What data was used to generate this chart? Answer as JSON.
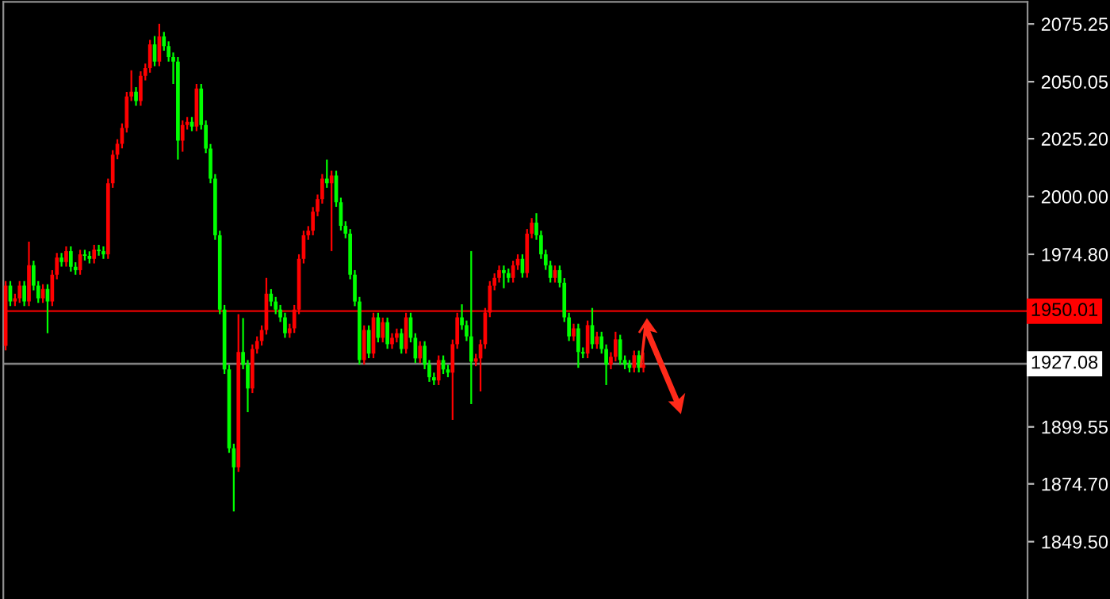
{
  "chart_data": {
    "type": "candlestick",
    "categories": [
      null,
      null,
      null,
      null,
      null,
      null,
      null,
      null,
      null,
      null,
      null,
      null,
      null,
      null,
      null,
      null,
      null,
      null,
      null,
      null,
      null,
      null,
      null,
      null,
      null,
      null,
      null,
      null,
      null,
      null,
      null,
      null,
      null,
      null,
      null,
      null,
      null,
      null,
      null,
      null,
      null,
      null,
      null,
      null,
      null,
      null,
      null,
      null,
      null,
      null,
      null,
      null,
      null,
      null,
      null,
      null,
      null,
      null,
      null,
      null,
      null,
      null,
      null,
      null,
      null,
      null,
      null,
      null,
      null,
      null,
      null,
      null,
      null,
      null,
      null,
      null,
      null,
      null,
      null,
      null,
      null,
      null,
      null,
      null,
      null,
      null,
      null,
      null,
      null,
      null,
      null,
      null,
      null,
      null,
      null,
      null,
      null,
      null,
      null,
      null,
      null,
      null,
      null,
      null,
      null,
      null,
      null,
      null,
      null,
      null,
      null,
      null,
      null,
      null,
      null,
      null,
      null,
      null,
      null,
      null,
      null,
      null,
      null,
      null,
      null,
      null,
      null,
      null,
      null,
      null,
      null,
      null,
      null,
      null,
      null,
      null,
      null,
      null,
      null,
      null,
      null,
      null,
      null,
      null,
      null,
      null,
      null,
      null,
      null,
      null,
      null,
      null,
      null,
      null,
      null,
      null,
      null,
      null,
      null,
      null,
      null,
      null,
      null,
      null,
      null,
      null,
      null,
      null,
      null,
      null,
      null,
      null,
      null,
      null,
      null,
      null,
      null,
      null,
      null,
      null,
      null,
      null,
      null,
      null,
      null,
      null,
      null,
      null,
      null,
      null,
      null,
      null,
      null,
      null,
      null,
      null,
      null,
      null,
      null,
      null,
      null,
      null,
      null,
      null,
      null,
      null,
      null,
      null,
      null,
      null,
      null,
      null,
      null,
      null,
      null,
      null,
      null,
      null,
      null,
      null
    ],
    "ohlc": [
      [
        1934.9,
        1963.1,
        1932.9,
        1961.1
      ],
      [
        1961.1,
        1963.1,
        1952.2,
        1954.2
      ],
      [
        1954.2,
        1957.6,
        1952.2,
        1955.6
      ],
      [
        1955.6,
        1963.1,
        1953.6,
        1961.1
      ],
      [
        1961.1,
        1963.1,
        1952.2,
        1954.2
      ],
      [
        1954.2,
        1980.3,
        1952.2,
        1970.0
      ],
      [
        1970.0,
        1972.0,
        1959.1,
        1961.1
      ],
      [
        1961.1,
        1963.1,
        1953.6,
        1955.6
      ],
      [
        1955.6,
        1961.7,
        1953.6,
        1959.7
      ],
      [
        1959.7,
        1961.7,
        1940.4,
        1954.2
      ],
      [
        1954.2,
        1967.9,
        1952.2,
        1965.9
      ],
      [
        1965.9,
        1975.4,
        1963.9,
        1973.4
      ],
      [
        1973.4,
        1975.4,
        1969.4,
        1971.4
      ],
      [
        1971.4,
        1978.2,
        1969.4,
        1976.2
      ],
      [
        1976.2,
        1978.2,
        1967.3,
        1969.3
      ],
      [
        1969.3,
        1971.3,
        1965.9,
        1967.9
      ],
      [
        1967.9,
        1976.8,
        1965.9,
        1974.8
      ],
      [
        1974.8,
        1976.8,
        1972.1,
        1974.1
      ],
      [
        1974.1,
        1976.1,
        1970.8,
        1972.8
      ],
      [
        1972.8,
        1978.9,
        1970.8,
        1976.9
      ],
      [
        1976.9,
        1978.9,
        1974.2,
        1976.2
      ],
      [
        1976.2,
        1978.2,
        1972.8,
        1974.8
      ],
      [
        1974.8,
        2007.8,
        1972.8,
        2005.8
      ],
      [
        2005.8,
        2020.2,
        2003.8,
        2018.2
      ],
      [
        2018.2,
        2025.0,
        2016.2,
        2023.0
      ],
      [
        2023.0,
        2031.9,
        2021.0,
        2029.9
      ],
      [
        2029.9,
        2045.6,
        2027.9,
        2043.6
      ],
      [
        2043.6,
        2055.0,
        2041.6,
        2045.7
      ],
      [
        2045.7,
        2047.7,
        2039.6,
        2041.6
      ],
      [
        2041.6,
        2054.6,
        2039.6,
        2052.6
      ],
      [
        2052.6,
        2058.0,
        2050.6,
        2056.0
      ],
      [
        2056.0,
        2068.3,
        2054.0,
        2066.3
      ],
      [
        2066.3,
        2070.0,
        2056.8,
        2058.8
      ],
      [
        2058.8,
        2075.3,
        2056.8,
        2069.8
      ],
      [
        2069.8,
        2071.8,
        2063.6,
        2065.6
      ],
      [
        2065.6,
        2067.6,
        2058.8,
        2060.8
      ],
      [
        2060.8,
        2062.8,
        2049.1,
        2058.8
      ],
      [
        2058.8,
        2060.8,
        2016.1,
        2024.4
      ],
      [
        2024.4,
        2033.2,
        2019.5,
        2031.2
      ],
      [
        2031.2,
        2034.6,
        2029.2,
        2032.6
      ],
      [
        2032.6,
        2034.6,
        2028.5,
        2030.5
      ],
      [
        2030.5,
        2049.1,
        2028.5,
        2047.1
      ],
      [
        2047.1,
        2049.1,
        2029.2,
        2031.2
      ],
      [
        2031.2,
        2033.2,
        2018.9,
        2020.9
      ],
      [
        2020.9,
        2022.9,
        2005.8,
        2007.8
      ],
      [
        2007.8,
        2009.8,
        1981.1,
        1983.1
      ],
      [
        1983.1,
        1985.1,
        1948.7,
        1950.7
      ],
      [
        1950.7,
        1952.7,
        1922.6,
        1924.6
      ],
      [
        1924.6,
        1926.6,
        1888.2,
        1890.2
      ],
      [
        1890.2,
        1892.2,
        1862.7,
        1881.9
      ],
      [
        1881.9,
        1948.7,
        1879.9,
        1932.2
      ],
      [
        1932.2,
        1947.0,
        1924.7,
        1926.7
      ],
      [
        1926.7,
        1928.7,
        1906.0,
        1916.3
      ],
      [
        1916.3,
        1935.5,
        1914.3,
        1933.5
      ],
      [
        1933.5,
        1939.0,
        1931.5,
        1937.0
      ],
      [
        1937.0,
        1943.8,
        1935.0,
        1941.8
      ],
      [
        1941.8,
        1964.5,
        1939.8,
        1957.6
      ],
      [
        1957.6,
        1959.6,
        1952.2,
        1954.2
      ],
      [
        1954.2,
        1956.2,
        1948.7,
        1950.7
      ],
      [
        1950.7,
        1952.7,
        1945.3,
        1947.3
      ],
      [
        1947.3,
        1949.3,
        1938.4,
        1940.4
      ],
      [
        1940.4,
        1944.5,
        1938.4,
        1942.5
      ],
      [
        1942.5,
        1952.7,
        1940.5,
        1950.7
      ],
      [
        1950.7,
        1974.8,
        1948.7,
        1972.8
      ],
      [
        1972.8,
        1985.1,
        1970.8,
        1983.1
      ],
      [
        1983.1,
        1987.1,
        1981.1,
        1985.1
      ],
      [
        1985.1,
        1995.4,
        1983.1,
        1993.4
      ],
      [
        1993.4,
        2000.9,
        1991.4,
        1998.9
      ],
      [
        1998.9,
        2009.8,
        1996.9,
        2007.8
      ],
      [
        2007.8,
        2016.1,
        2003.8,
        2005.8
      ],
      [
        2005.8,
        2011.2,
        1976.2,
        2009.2
      ],
      [
        2009.2,
        2011.2,
        1995.5,
        1997.5
      ],
      [
        1997.5,
        1999.5,
        1985.2,
        1987.2
      ],
      [
        1987.2,
        1989.2,
        1981.8,
        1983.8
      ],
      [
        1983.8,
        1985.8,
        1963.9,
        1965.9
      ],
      [
        1965.9,
        1967.9,
        1952.2,
        1954.2
      ],
      [
        1954.2,
        1956.2,
        1926.7,
        1928.7
      ],
      [
        1928.7,
        1943.8,
        1926.7,
        1941.8
      ],
      [
        1941.8,
        1943.8,
        1929.5,
        1931.5
      ],
      [
        1931.5,
        1949.3,
        1929.5,
        1947.3
      ],
      [
        1947.3,
        1949.3,
        1936.4,
        1938.4
      ],
      [
        1938.4,
        1947.2,
        1936.4,
        1945.2
      ],
      [
        1945.2,
        1947.2,
        1933.6,
        1935.6
      ],
      [
        1935.6,
        1940.4,
        1933.6,
        1938.4
      ],
      [
        1938.4,
        1942.4,
        1936.4,
        1940.4
      ],
      [
        1940.4,
        1942.4,
        1931.5,
        1933.5
      ],
      [
        1933.5,
        1949.3,
        1931.5,
        1947.3
      ],
      [
        1947.3,
        1949.3,
        1936.4,
        1938.4
      ],
      [
        1938.4,
        1940.4,
        1927.4,
        1929.4
      ],
      [
        1929.4,
        1936.9,
        1927.4,
        1934.9
      ],
      [
        1934.9,
        1936.9,
        1924.7,
        1926.7
      ],
      [
        1926.7,
        1928.7,
        1919.2,
        1921.2
      ],
      [
        1921.2,
        1923.2,
        1917.8,
        1919.8
      ],
      [
        1919.8,
        1930.7,
        1917.8,
        1928.7
      ],
      [
        1928.7,
        1930.7,
        1922.6,
        1924.6
      ],
      [
        1924.6,
        1926.6,
        1921.2,
        1923.2
      ],
      [
        1923.2,
        1937.6,
        1902.6,
        1935.6
      ],
      [
        1935.6,
        1949.3,
        1933.6,
        1947.3
      ],
      [
        1947.3,
        1953.0,
        1941.9,
        1943.9
      ],
      [
        1943.9,
        1945.9,
        1937.0,
        1939.0
      ],
      [
        1939.0,
        1976.2,
        1909.5,
        1928.0
      ],
      [
        1928.0,
        1931.4,
        1926.0,
        1929.4
      ],
      [
        1929.4,
        1937.6,
        1915.0,
        1935.6
      ],
      [
        1935.6,
        1951.4,
        1933.6,
        1949.4
      ],
      [
        1949.4,
        1963.1,
        1947.4,
        1961.1
      ],
      [
        1961.1,
        1966.5,
        1959.1,
        1964.5
      ],
      [
        1964.5,
        1969.9,
        1962.5,
        1967.9
      ],
      [
        1967.9,
        1969.9,
        1960.0,
        1966.6
      ],
      [
        1966.6,
        1968.6,
        1962.5,
        1964.5
      ],
      [
        1964.5,
        1972.0,
        1962.5,
        1970.0
      ],
      [
        1970.0,
        1974.8,
        1968.0,
        1972.8
      ],
      [
        1972.8,
        1974.8,
        1964.6,
        1966.6
      ],
      [
        1966.6,
        1985.8,
        1964.6,
        1983.8
      ],
      [
        1983.8,
        1990.6,
        1981.8,
        1988.6
      ],
      [
        1988.6,
        1992.7,
        1981.1,
        1983.1
      ],
      [
        1983.1,
        1985.1,
        1972.8,
        1974.8
      ],
      [
        1974.8,
        1976.8,
        1968.0,
        1970.0
      ],
      [
        1970.0,
        1972.0,
        1962.5,
        1964.5
      ],
      [
        1964.5,
        1969.9,
        1962.5,
        1967.9
      ],
      [
        1967.9,
        1969.9,
        1960.4,
        1962.4
      ],
      [
        1962.4,
        1964.4,
        1945.3,
        1947.3
      ],
      [
        1947.3,
        1949.3,
        1937.0,
        1939.0
      ],
      [
        1939.0,
        1944.5,
        1937.0,
        1942.5
      ],
      [
        1942.5,
        1944.5,
        1925.3,
        1932.2
      ],
      [
        1932.2,
        1934.2,
        1929.5,
        1931.5
      ],
      [
        1931.5,
        1945.9,
        1929.5,
        1943.9
      ],
      [
        1943.9,
        1951.4,
        1933.6,
        1935.6
      ],
      [
        1935.6,
        1941.0,
        1933.6,
        1939.0
      ],
      [
        1939.0,
        1941.0,
        1931.5,
        1933.5
      ],
      [
        1933.5,
        1935.5,
        1917.8,
        1926.7
      ],
      [
        1926.7,
        1932.1,
        1924.7,
        1930.1
      ],
      [
        1930.1,
        1941.0,
        1928.1,
        1937.7
      ],
      [
        1937.7,
        1939.7,
        1926.7,
        1928.7
      ],
      [
        1928.7,
        1930.7,
        1924.7,
        1926.7
      ],
      [
        1926.7,
        1928.7,
        1923.3,
        1925.3
      ],
      [
        1925.3,
        1932.8,
        1923.3,
        1930.8
      ],
      [
        1930.8,
        1932.8,
        1923.3,
        1925.3
      ],
      [
        1925.3,
        1932.0,
        1923.3,
        1926.7
      ],
      null,
      null,
      null,
      null,
      null,
      null,
      null,
      null,
      null,
      null,
      null,
      null,
      null,
      null,
      null,
      null,
      null,
      null,
      null,
      null,
      null,
      null,
      null,
      null,
      null,
      null,
      null,
      null,
      null,
      null,
      null,
      null,
      null,
      null,
      null,
      null,
      null,
      null,
      null,
      null,
      null,
      null,
      null,
      null,
      null,
      null,
      null,
      null,
      null,
      null,
      null,
      null,
      null,
      null,
      null,
      null,
      null,
      null,
      null,
      null,
      null,
      null,
      null,
      null,
      null,
      null,
      null,
      null,
      null,
      null,
      null,
      null,
      null,
      null,
      null,
      null,
      null,
      null,
      null,
      null,
      null,
      null
    ],
    "colors": [
      "#ff0000",
      "#00ff00",
      "#ff0000",
      "#ff0000",
      "#00ff00",
      "#ff0000",
      "#00ff00",
      "#00ff00",
      "#ff0000",
      "#00ff00",
      "#ff0000",
      "#ff0000",
      "#00ff00",
      "#ff0000",
      "#00ff00",
      "#00ff00",
      "#ff0000",
      "#00ff00",
      "#00ff00",
      "#ff0000",
      "#00ff00",
      "#00ff00",
      "#ff0000",
      "#ff0000",
      "#ff0000",
      "#ff0000",
      "#ff0000",
      "#ff0000",
      "#00ff00",
      "#ff0000",
      "#ff0000",
      "#ff0000",
      "#00ff00",
      "#ff0000",
      "#00ff00",
      "#00ff00",
      "#00ff00",
      "#00ff00",
      "#ff0000",
      "#ff0000",
      "#00ff00",
      "#ff0000",
      "#00ff00",
      "#00ff00",
      "#00ff00",
      "#00ff00",
      "#00ff00",
      "#00ff00",
      "#00ff00",
      "#00ff00",
      "#ff0000",
      "#00ff00",
      "#00ff00",
      "#ff0000",
      "#ff0000",
      "#ff0000",
      "#ff0000",
      "#00ff00",
      "#00ff00",
      "#00ff00",
      "#00ff00",
      "#ff0000",
      "#ff0000",
      "#ff0000",
      "#ff0000",
      "#ff0000",
      "#ff0000",
      "#ff0000",
      "#ff0000",
      "#00ff00",
      "#ff0000",
      "#00ff00",
      "#00ff00",
      "#00ff00",
      "#00ff00",
      "#00ff00",
      "#00ff00",
      "#ff0000",
      "#00ff00",
      "#ff0000",
      "#00ff00",
      "#ff0000",
      "#00ff00",
      "#ff0000",
      "#ff0000",
      "#00ff00",
      "#ff0000",
      "#00ff00",
      "#00ff00",
      "#ff0000",
      "#00ff00",
      "#00ff00",
      "#00ff00",
      "#ff0000",
      "#00ff00",
      "#00ff00",
      "#ff0000",
      "#ff0000",
      "#00ff00",
      "#00ff00",
      "#00ff00",
      "#ff0000",
      "#ff0000",
      "#ff0000",
      "#ff0000",
      "#ff0000",
      "#ff0000",
      "#00ff00",
      "#00ff00",
      "#ff0000",
      "#ff0000",
      "#00ff00",
      "#ff0000",
      "#ff0000",
      "#00ff00",
      "#00ff00",
      "#00ff00",
      "#00ff00",
      "#ff0000",
      "#00ff00",
      "#00ff00",
      "#00ff00",
      "#ff0000",
      "#00ff00",
      "#00ff00",
      "#ff0000",
      "#00ff00",
      "#ff0000",
      "#00ff00",
      "#00ff00",
      "#ff0000",
      "#ff0000",
      "#00ff00",
      "#00ff00",
      "#00ff00",
      "#ff0000",
      "#00ff00",
      "#ff0000",
      null,
      null,
      null,
      null,
      null,
      null,
      null,
      null,
      null,
      null,
      null,
      null,
      null,
      null,
      null,
      null,
      null,
      null,
      null,
      null,
      null,
      null,
      null,
      null,
      null,
      null,
      null,
      null,
      null,
      null,
      null,
      null,
      null,
      null,
      null,
      null,
      null,
      null,
      null,
      null,
      null,
      null,
      null,
      null,
      null,
      null,
      null,
      null,
      null,
      null,
      null,
      null,
      null,
      null,
      null,
      null,
      null,
      null,
      null,
      null,
      null,
      null,
      null,
      null,
      null,
      null,
      null,
      null,
      null,
      null,
      null,
      null,
      null,
      null,
      null,
      null,
      null,
      null,
      null,
      null,
      null,
      null
    ],
    "ylim": [
      1824.5,
      2084.9
    ],
    "yticks": [
      {
        "value": 1849.5,
        "label": "1849.50"
      },
      {
        "value": 1874.7,
        "label": "1874.70"
      },
      1899.55,
      {
        "value": 1974.8,
        "label": "1974.80"
      },
      {
        "value": 2000.0,
        "label": "2000.00"
      },
      {
        "value": 2025.2,
        "label": "2025.20"
      },
      2050.05,
      2075.25
    ],
    "tick_labels": "y",
    "ref_lines": [
      {
        "axis": "y",
        "value": 1950.01,
        "label": "1950.01",
        "color": "#c00000",
        "line_style": "solid"
      },
      {
        "axis": "y",
        "value": 1927.08,
        "label": "1927.08",
        "color": "#808080",
        "line_style": "solid"
      }
    ],
    "grid": false,
    "legend": false
  }
}
